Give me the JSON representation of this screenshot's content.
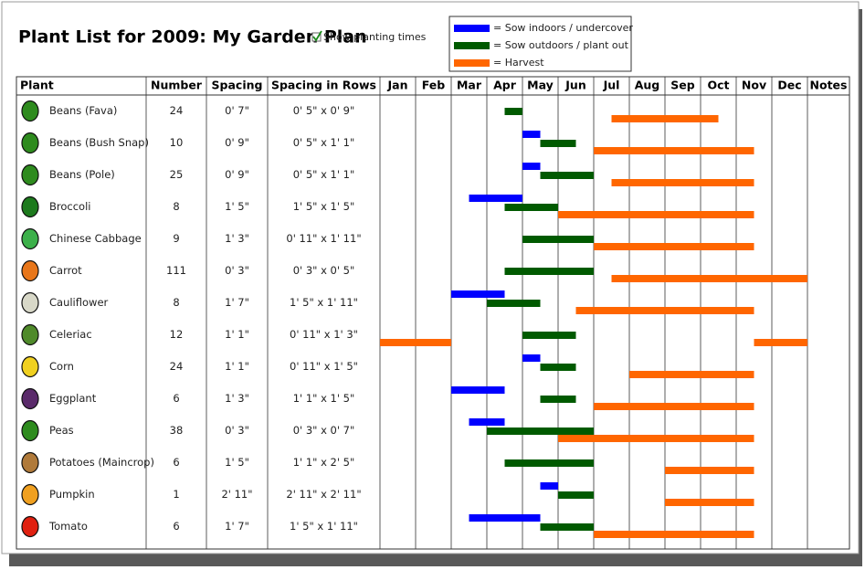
{
  "title": "Plant List for 2009: My Garden Plan",
  "checkbox_label": "Show planting times",
  "checkbox_checked": true,
  "legend": [
    {
      "key": "sow_indoors",
      "label": "= Sow indoors / undercover",
      "color": "#0000ff"
    },
    {
      "key": "sow_outdoors",
      "label": "= Sow outdoors / plant out",
      "color": "#005a00"
    },
    {
      "key": "harvest",
      "label": "= Harvest",
      "color": "#ff6600"
    }
  ],
  "table": {
    "columns": [
      "Plant",
      "Number",
      "Spacing",
      "Spacing in Rows",
      "Jan",
      "Feb",
      "Mar",
      "Apr",
      "May",
      "Jun",
      "Jul",
      "Aug",
      "Sep",
      "Oct",
      "Nov",
      "Dec",
      "Notes"
    ],
    "rows": [
      {
        "plant": "Beans (Fava)",
        "number": 24,
        "spacing": "0' 7\"",
        "spacing_in_rows": "0' 5\" x 0' 9\"",
        "sow_outdoors": [
          [
            3.5,
            4
          ]
        ],
        "harvest": [
          [
            6.5,
            9.5
          ]
        ]
      },
      {
        "plant": "Beans (Bush Snap)",
        "number": 10,
        "spacing": "0' 9\"",
        "spacing_in_rows": "0' 5\" x 1' 1\"",
        "sow_indoors": [
          [
            4,
            4.5
          ]
        ],
        "sow_outdoors": [
          [
            4.5,
            5.5
          ]
        ],
        "harvest": [
          [
            6,
            10.5
          ]
        ]
      },
      {
        "plant": "Beans (Pole)",
        "number": 25,
        "spacing": "0' 9\"",
        "spacing_in_rows": "0' 5\" x 1' 1\"",
        "sow_indoors": [
          [
            4,
            4.5
          ]
        ],
        "sow_outdoors": [
          [
            4.5,
            6
          ]
        ],
        "harvest": [
          [
            6.5,
            10.5
          ]
        ]
      },
      {
        "plant": "Broccoli",
        "number": 8,
        "spacing": "1' 5\"",
        "spacing_in_rows": "1' 5\" x 1' 5\"",
        "sow_indoors": [
          [
            2.5,
            4
          ]
        ],
        "sow_outdoors": [
          [
            3.5,
            5
          ]
        ],
        "harvest": [
          [
            5,
            10.5
          ]
        ]
      },
      {
        "plant": "Chinese Cabbage",
        "number": 9,
        "spacing": "1' 3\"",
        "spacing_in_rows": "0' 11\" x 1' 11\"",
        "sow_outdoors": [
          [
            4,
            6
          ]
        ],
        "harvest": [
          [
            6,
            10.5
          ]
        ]
      },
      {
        "plant": "Carrot",
        "number": 111,
        "spacing": "0' 3\"",
        "spacing_in_rows": "0' 3\" x 0' 5\"",
        "sow_outdoors": [
          [
            3.5,
            6
          ]
        ],
        "harvest": [
          [
            6.5,
            12
          ]
        ]
      },
      {
        "plant": "Cauliflower",
        "number": 8,
        "spacing": "1' 7\"",
        "spacing_in_rows": "1' 5\" x 1' 11\"",
        "sow_indoors": [
          [
            2,
            3.5
          ]
        ],
        "sow_outdoors": [
          [
            3,
            4.5
          ]
        ],
        "harvest": [
          [
            5.5,
            10.5
          ]
        ]
      },
      {
        "plant": "Celeriac",
        "number": 12,
        "spacing": "1' 1\"",
        "spacing_in_rows": "0' 11\" x 1' 3\"",
        "sow_outdoors": [
          [
            4,
            5.5
          ]
        ],
        "harvest": [
          [
            0,
            2
          ],
          [
            10.5,
            12
          ]
        ]
      },
      {
        "plant": "Corn",
        "number": 24,
        "spacing": "1' 1\"",
        "spacing_in_rows": "0' 11\" x 1' 5\"",
        "sow_indoors": [
          [
            4,
            4.5
          ]
        ],
        "sow_outdoors": [
          [
            4.5,
            5.5
          ]
        ],
        "harvest": [
          [
            7,
            10.5
          ]
        ]
      },
      {
        "plant": "Eggplant",
        "number": 6,
        "spacing": "1' 3\"",
        "spacing_in_rows": "1' 1\" x 1' 5\"",
        "sow_indoors": [
          [
            2,
            3.5
          ]
        ],
        "sow_outdoors": [
          [
            4.5,
            5.5
          ]
        ],
        "harvest": [
          [
            6,
            10.5
          ]
        ]
      },
      {
        "plant": "Peas",
        "number": 38,
        "spacing": "0' 3\"",
        "spacing_in_rows": "0' 3\" x 0' 7\"",
        "sow_indoors": [
          [
            2.5,
            3.5
          ]
        ],
        "sow_outdoors": [
          [
            3,
            6
          ]
        ],
        "harvest": [
          [
            5,
            10.5
          ]
        ]
      },
      {
        "plant": "Potatoes (Maincrop)",
        "number": 6,
        "spacing": "1' 5\"",
        "spacing_in_rows": "1' 1\" x 2' 5\"",
        "sow_outdoors": [
          [
            3.5,
            6
          ]
        ],
        "harvest": [
          [
            8,
            10.5
          ]
        ]
      },
      {
        "plant": "Pumpkin",
        "number": 1,
        "spacing": "2' 11\"",
        "spacing_in_rows": "2' 11\" x 2' 11\"",
        "sow_indoors": [
          [
            4.5,
            5
          ]
        ],
        "sow_outdoors": [
          [
            5,
            6
          ]
        ],
        "harvest": [
          [
            8,
            10.5
          ]
        ]
      },
      {
        "plant": "Tomato",
        "number": 6,
        "spacing": "1' 7\"",
        "spacing_in_rows": "1' 5\" x 1' 11\"",
        "sow_indoors": [
          [
            2.5,
            4.5
          ]
        ],
        "sow_outdoors": [
          [
            4.5,
            6
          ]
        ],
        "harvest": [
          [
            6,
            10.5
          ]
        ]
      }
    ]
  }
}
